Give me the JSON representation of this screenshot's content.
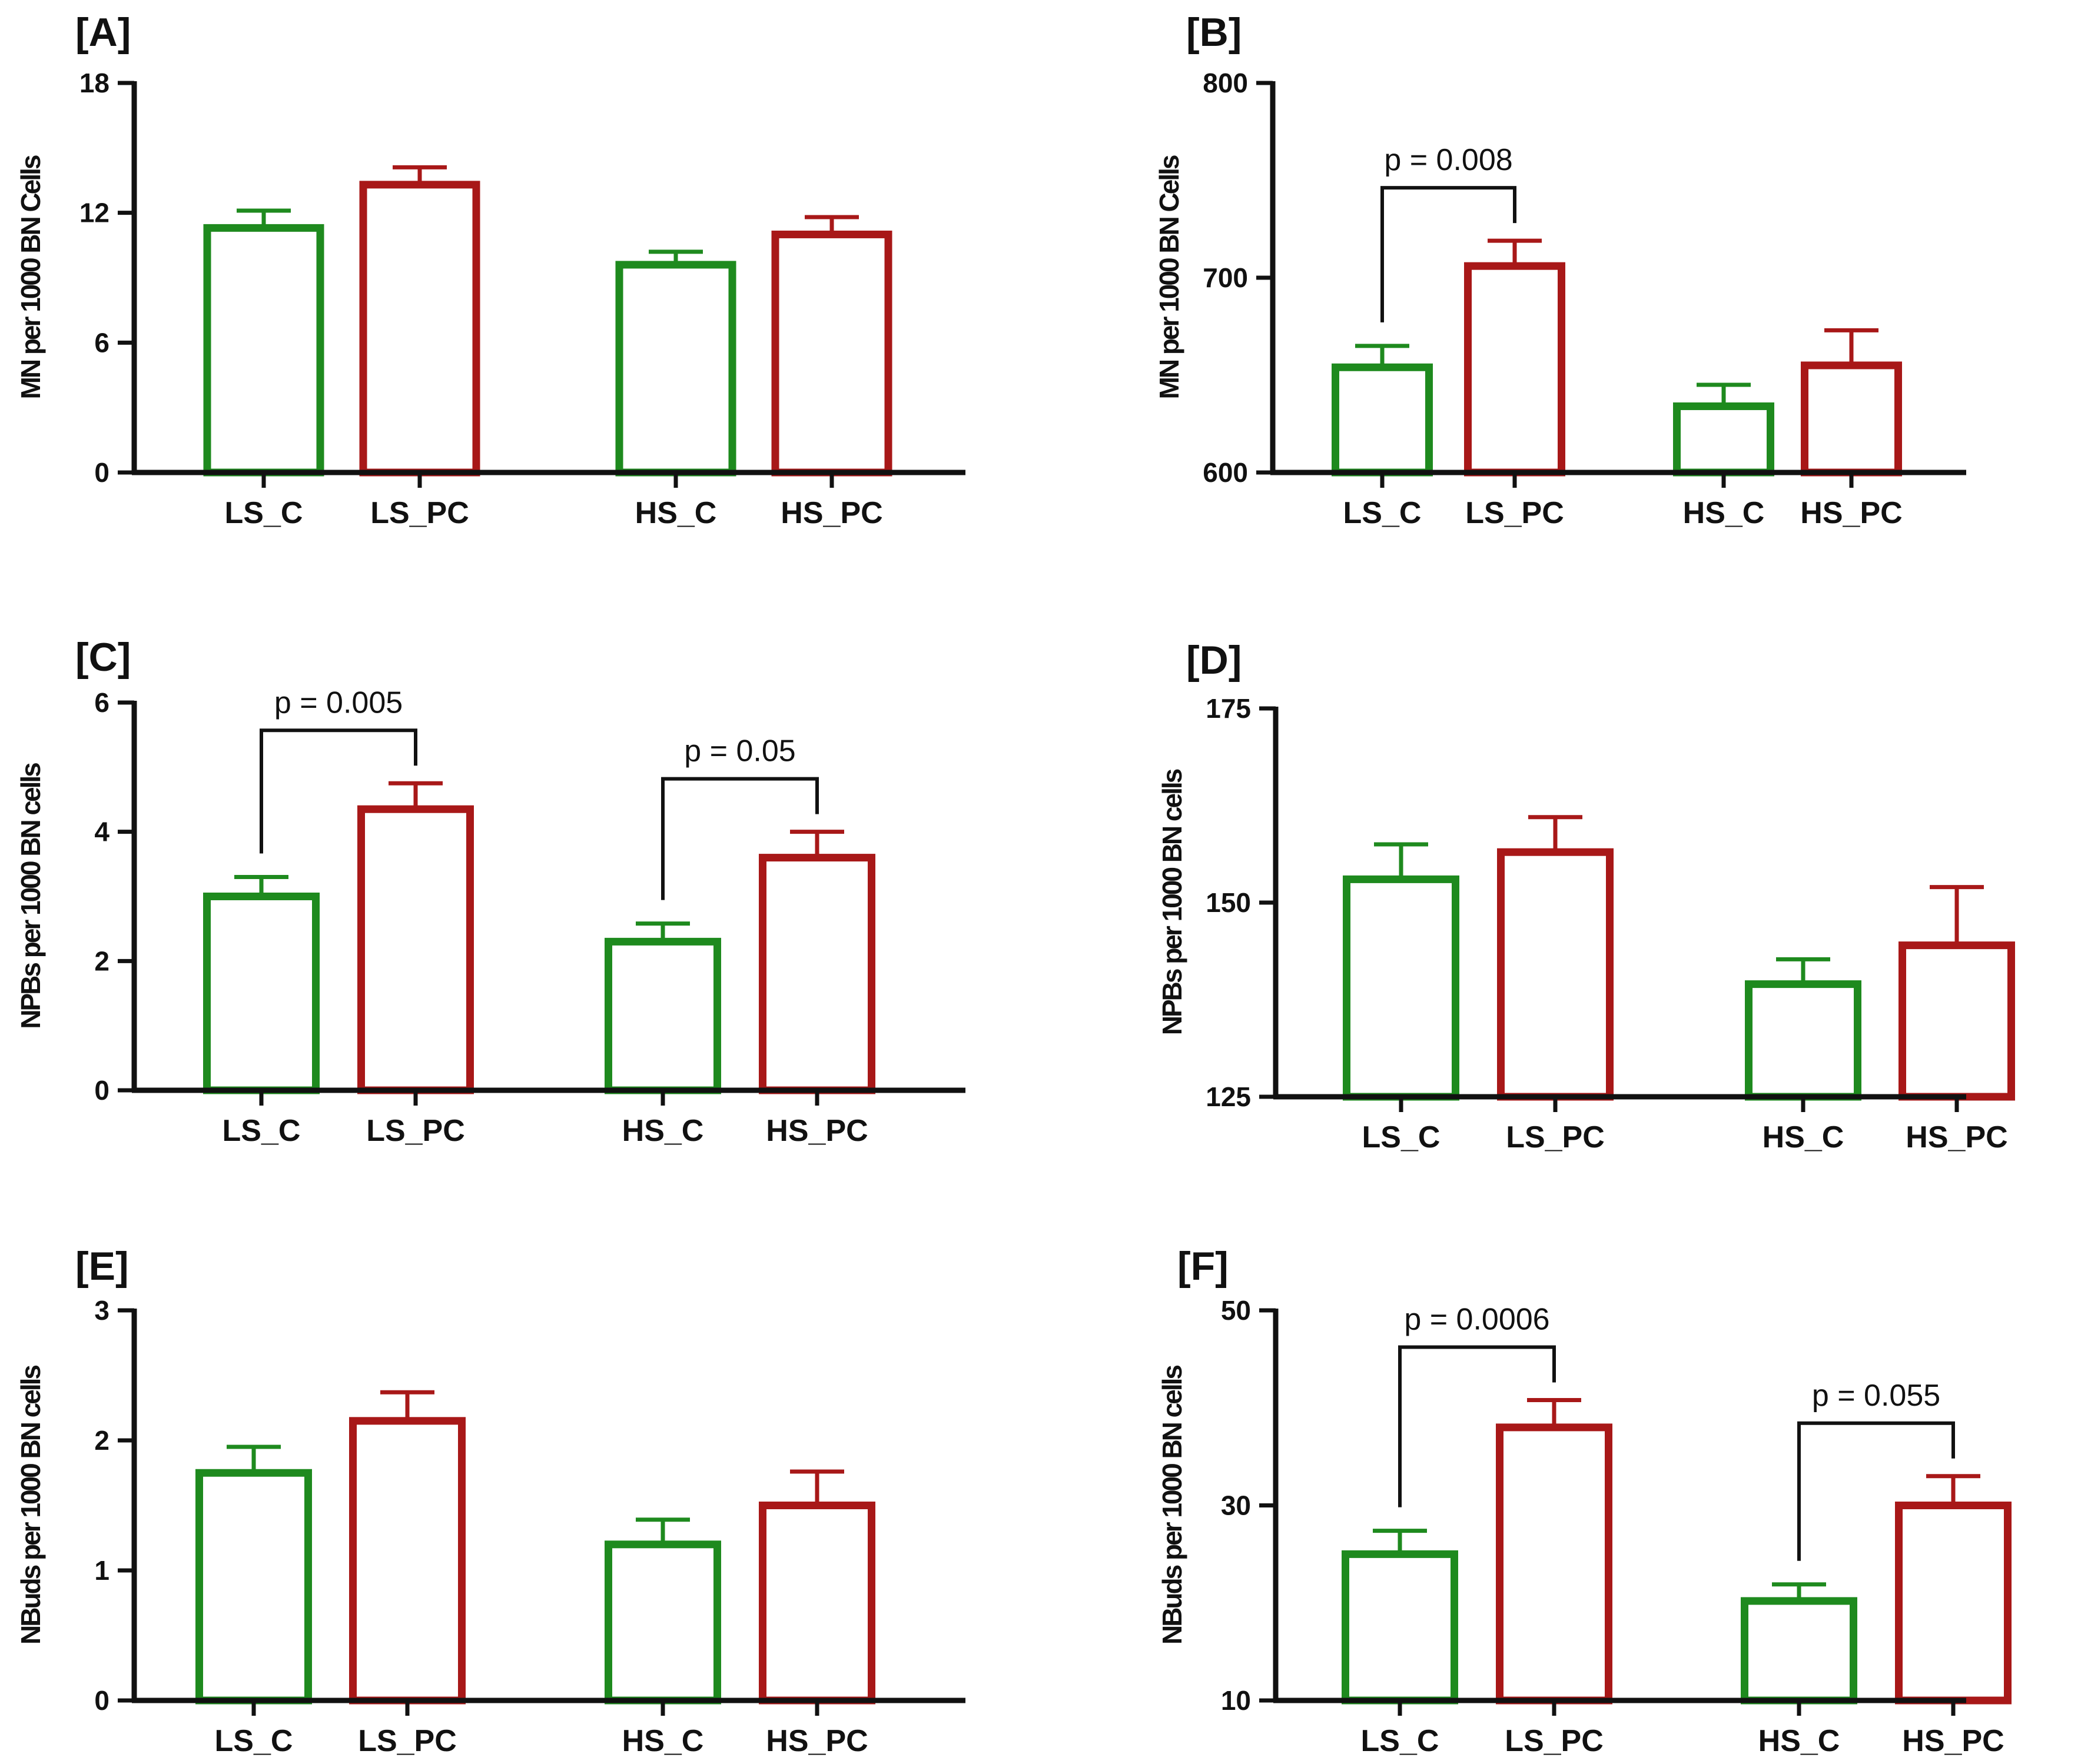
{
  "colors": {
    "control": "#1e8a1e",
    "treated": "#a81818",
    "axis": "#111111"
  },
  "chart_data": [
    {
      "type": "bar",
      "panel": "[A]",
      "ylabel": "MN per 1000 BN Cells",
      "ylim": [
        0,
        18
      ],
      "yticks": [
        0,
        6,
        12,
        18
      ],
      "categories": [
        "LS_C",
        "LS_PC",
        "HS_C",
        "HS_PC"
      ],
      "values": [
        11.3,
        13.3,
        9.6,
        11.0
      ],
      "errors": [
        0.8,
        0.8,
        0.6,
        0.8
      ],
      "significance": []
    },
    {
      "type": "bar",
      "panel": "[B]",
      "ylabel": "MN per 1000 BN Cells",
      "ylim": [
        600,
        800
      ],
      "yticks": [
        600,
        700,
        800
      ],
      "categories": [
        "LS_C",
        "LS_PC",
        "HS_C",
        "HS_PC"
      ],
      "values": [
        654,
        706,
        634,
        655
      ],
      "errors": [
        11,
        13,
        11,
        18
      ],
      "significance": [
        {
          "from": 0,
          "to": 1,
          "label": "p = 0.008"
        }
      ]
    },
    {
      "type": "bar",
      "panel": "[C]",
      "ylabel": "NPBs per 1000 BN cells",
      "ylim": [
        0,
        6
      ],
      "yticks": [
        0,
        2,
        4,
        6
      ],
      "categories": [
        "LS_C",
        "LS_PC",
        "HS_C",
        "HS_PC"
      ],
      "values": [
        3.0,
        4.35,
        2.3,
        3.6
      ],
      "errors": [
        0.3,
        0.4,
        0.28,
        0.4
      ],
      "significance": [
        {
          "from": 0,
          "to": 1,
          "label": "p = 0.005"
        },
        {
          "from": 2,
          "to": 3,
          "label": "p = 0.05"
        }
      ]
    },
    {
      "type": "bar",
      "panel": "[D]",
      "ylabel": "NPBs per 1000 BN cells",
      "ylim": [
        125,
        175
      ],
      "yticks": [
        125,
        150,
        175
      ],
      "categories": [
        "LS_C",
        "LS_PC",
        "HS_C",
        "HS_PC"
      ],
      "values": [
        153,
        156.5,
        139.5,
        144.5
      ],
      "errors": [
        4.5,
        4.5,
        3.2,
        7.5
      ],
      "significance": []
    },
    {
      "type": "bar",
      "panel": "[E]",
      "ylabel": "NBuds per 1000 BN cells",
      "ylim": [
        0,
        3
      ],
      "yticks": [
        0,
        1,
        2,
        3
      ],
      "categories": [
        "LS_C",
        "LS_PC",
        "HS_C",
        "HS_PC"
      ],
      "values": [
        1.75,
        2.15,
        1.2,
        1.5
      ],
      "errors": [
        0.2,
        0.22,
        0.19,
        0.26
      ],
      "significance": []
    },
    {
      "type": "bar",
      "panel": "[F]",
      "ylabel": "NBuds per 1000 BN cells",
      "ylim": [
        10,
        50
      ],
      "yticks": [
        10,
        30,
        50
      ],
      "categories": [
        "LS_C",
        "LS_PC",
        "HS_C",
        "HS_PC"
      ],
      "values": [
        25,
        38,
        20.2,
        30
      ],
      "errors": [
        2.4,
        2.8,
        1.7,
        3.0
      ],
      "significance": [
        {
          "from": 0,
          "to": 1,
          "label": "p = 0.0006"
        },
        {
          "from": 2,
          "to": 3,
          "label": "p = 0.055"
        }
      ]
    }
  ]
}
